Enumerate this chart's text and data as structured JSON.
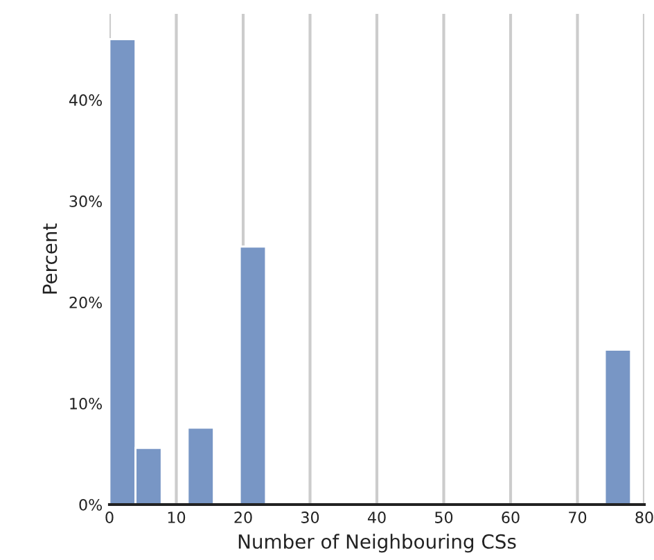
{
  "chart_data": {
    "type": "histogram",
    "xlabel": "Number of Neighbouring CSs",
    "ylabel": "Percent",
    "bins": [
      0,
      3.9,
      7.8,
      11.7,
      15.6,
      19.5,
      23.4,
      27.3,
      31.2,
      35.1,
      39,
      42.9,
      46.8,
      50.7,
      54.6,
      58.5,
      62.4,
      66.3,
      70.2,
      74.1,
      78
    ],
    "values": [
      46.0,
      5.6,
      0,
      7.6,
      0,
      25.5,
      0,
      0,
      0,
      0,
      0,
      0,
      0,
      0,
      0,
      0,
      0,
      0,
      0,
      15.3
    ],
    "color": "#7896c5",
    "xlim": [
      0,
      80
    ],
    "xticks": [
      0,
      10,
      20,
      30,
      40,
      50,
      60,
      70,
      80
    ],
    "ylim": [
      0,
      48.5
    ],
    "yticks": [
      {
        "value": 0,
        "label": "0%"
      },
      {
        "value": 10,
        "label": "10%"
      },
      {
        "value": 20,
        "label": "20%"
      },
      {
        "value": 30,
        "label": "30%"
      },
      {
        "value": 40,
        "label": "40%"
      }
    ],
    "grid": "x",
    "legend": false
  }
}
